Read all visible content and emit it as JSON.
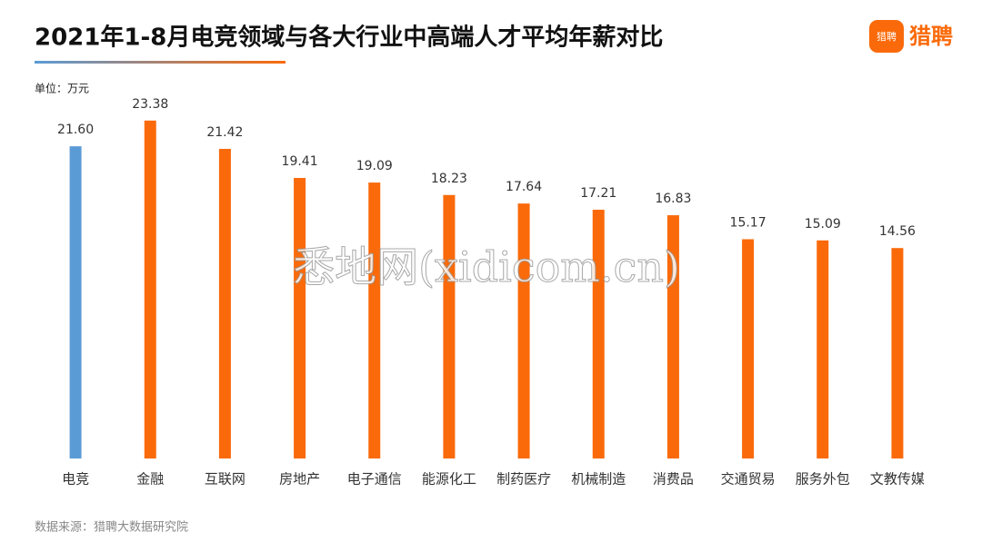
{
  "chart_data": {
    "type": "bar",
    "title": "2021年1-8月电竞领域与各大行业中高端人才平均年薪对比",
    "unit": "单位：万元",
    "source": "数据来源：猎聘大数据研究院",
    "logo": "猎聘",
    "logo_icon": "猎聘",
    "watermark": "悉地网(xidicom.cn)",
    "categories": [
      "电竞",
      "金融",
      "互联网",
      "房地产",
      "电子通信",
      "能源化工",
      "制药医疗",
      "机械制造",
      "消费品",
      "交通贸易",
      "服务外包",
      "文教传媒"
    ],
    "values": [
      21.6,
      23.38,
      21.42,
      19.41,
      19.09,
      18.23,
      17.64,
      17.21,
      16.83,
      15.17,
      15.09,
      14.56
    ],
    "value_labels": [
      "21.60",
      "23.38",
      "21.42",
      "19.41",
      "19.09",
      "18.23",
      "17.64",
      "17.21",
      "16.83",
      "15.17",
      "15.09",
      "14.56"
    ],
    "colors": [
      "#5b9bd5",
      "#fa6a0a",
      "#fa6a0a",
      "#fa6a0a",
      "#fa6a0a",
      "#fa6a0a",
      "#fa6a0a",
      "#fa6a0a",
      "#fa6a0a",
      "#fa6a0a",
      "#fa6a0a",
      "#fa6a0a"
    ],
    "ylim": [
      0,
      25
    ]
  }
}
